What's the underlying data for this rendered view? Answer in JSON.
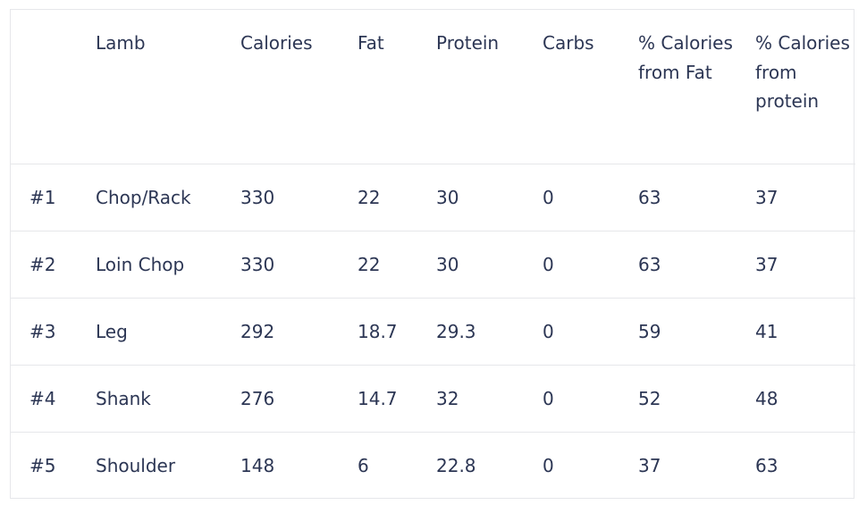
{
  "table": {
    "headers": [
      "",
      "Lamb",
      "Calories",
      "Fat",
      "Protein",
      "Carbs",
      "% Calories from Fat",
      "% Calories from protein"
    ],
    "rows": [
      [
        "#1",
        "Chop/Rack",
        "330",
        "22",
        "30",
        "0",
        "63",
        "37"
      ],
      [
        "#2",
        "Loin Chop",
        "330",
        "22",
        "30",
        "0",
        "63",
        "37"
      ],
      [
        "#3",
        "Leg",
        "292",
        "18.7",
        "29.3",
        "0",
        "59",
        "41"
      ],
      [
        "#4",
        "Shank",
        "276",
        "14.7",
        "32",
        "0",
        "52",
        "48"
      ],
      [
        "#5",
        "Shoulder",
        "148",
        "6",
        "22.8",
        "0",
        "37",
        "63"
      ]
    ]
  }
}
